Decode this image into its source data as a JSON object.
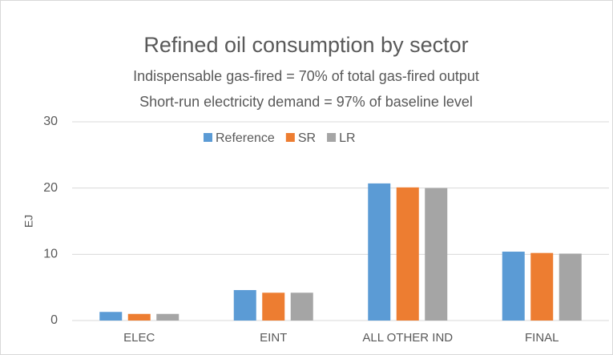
{
  "chart_data": {
    "type": "bar",
    "title": "Refined oil consumption by sector",
    "subtitle": [
      "Indispensable gas-fired = 70% of total gas-fired output",
      "Short-run electricity demand = 97% of baseline level"
    ],
    "ylabel": "EJ",
    "categories": [
      "ELEC",
      "EINT",
      "ALL OTHER IND",
      "FINAL"
    ],
    "series": [
      {
        "name": "Reference",
        "color": "#5b9bd5",
        "values": [
          1.3,
          4.6,
          20.7,
          10.4
        ]
      },
      {
        "name": "SR",
        "color": "#ed7d31",
        "values": [
          1.0,
          4.2,
          20.1,
          10.2
        ]
      },
      {
        "name": "LR",
        "color": "#a5a5a5",
        "values": [
          1.0,
          4.2,
          20.0,
          10.1
        ]
      }
    ],
    "ylim": [
      0,
      30
    ],
    "yticks": [
      0,
      10,
      20,
      30
    ],
    "grid": true,
    "legend": "top"
  }
}
